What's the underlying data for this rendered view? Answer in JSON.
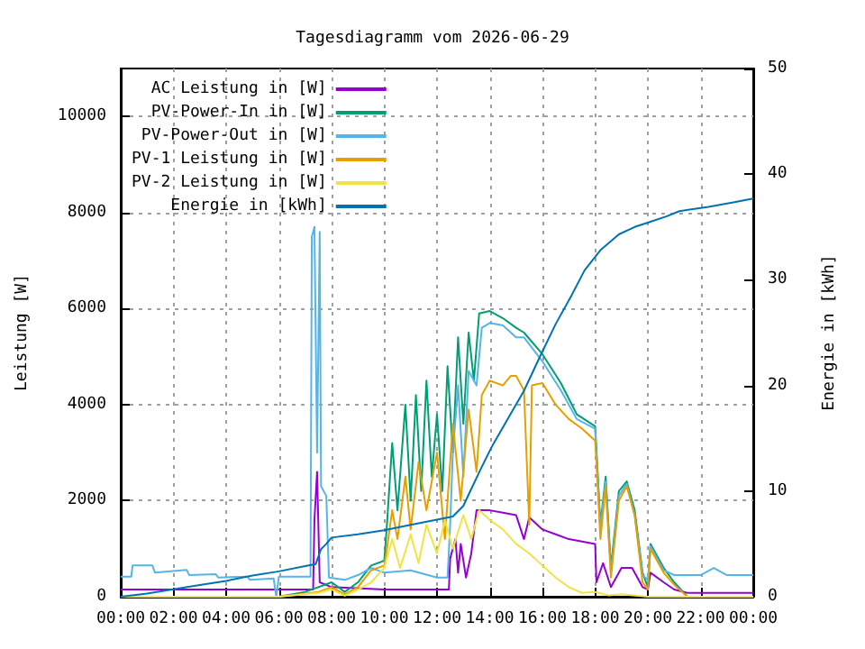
{
  "chart_data": {
    "type": "line",
    "title": "Tagesdiagramm vom 2026-06-29",
    "ylabel": "Leistung [W]",
    "y2label": "Energie in [kWh]",
    "xlim": [
      0,
      24
    ],
    "xticks": [
      {
        "value": 0,
        "label": "00:00"
      },
      {
        "value": 2,
        "label": "02:00"
      },
      {
        "value": 4,
        "label": "04:00"
      },
      {
        "value": 6,
        "label": "06:00"
      },
      {
        "value": 8,
        "label": "08:00"
      },
      {
        "value": 10,
        "label": "10:00"
      },
      {
        "value": 12,
        "label": "12:00"
      },
      {
        "value": 14,
        "label": "14:00"
      },
      {
        "value": 16,
        "label": "16:00"
      },
      {
        "value": 18,
        "label": "18:00"
      },
      {
        "value": 20,
        "label": "20:00"
      },
      {
        "value": 22,
        "label": "22:00"
      },
      {
        "value": 24,
        "label": "00:00"
      }
    ],
    "ylim": [
      0,
      11000
    ],
    "yticks": [
      0,
      2000,
      4000,
      6000,
      8000,
      10000
    ],
    "y2lim": [
      0,
      50
    ],
    "y2ticks": [
      0,
      10,
      20,
      30,
      40,
      50
    ],
    "grid": true,
    "legend": "top left",
    "line_style": "solid",
    "marker": "none",
    "series": [
      {
        "name": "AC Leistung in [W]",
        "color": "#9400d3",
        "x": [
          0,
          6,
          7.3,
          7.35,
          7.45,
          7.55,
          8,
          10,
          12,
          12.45,
          12.5,
          12.7,
          12.8,
          12.9,
          13.1,
          13.3,
          13.5,
          14,
          14.5,
          15,
          15.3,
          15.5,
          15.8,
          16,
          16.5,
          17,
          17.5,
          18,
          18.05,
          18.3,
          18.6,
          19,
          19.4,
          19.8,
          20,
          20.1,
          20.6,
          21,
          21.5,
          24
        ],
        "values": [
          150,
          150,
          150,
          1600,
          2600,
          300,
          200,
          150,
          150,
          150,
          800,
          1200,
          500,
          1100,
          400,
          900,
          1800,
          1800,
          1750,
          1700,
          1200,
          1650,
          1500,
          1400,
          1300,
          1200,
          1150,
          1100,
          300,
          700,
          200,
          600,
          600,
          200,
          150,
          500,
          300,
          150,
          80,
          80
        ]
      },
      {
        "name": "PV-Power-In in [W]",
        "color": "#009e73",
        "x": [
          0,
          6,
          7,
          8,
          8.5,
          9,
          9.5,
          10,
          10.1,
          10.3,
          10.5,
          10.8,
          11,
          11.2,
          11.4,
          11.6,
          11.8,
          12,
          12.2,
          12.4,
          12.6,
          12.8,
          13,
          13.2,
          13.4,
          13.6,
          14,
          14.5,
          15,
          15.3,
          16,
          16.7,
          17.3,
          18,
          18.05,
          18.2,
          18.4,
          18.6,
          18.9,
          19.2,
          19.5,
          19.8,
          20,
          20.1,
          20.6,
          21,
          21.5,
          24
        ],
        "values": [
          0,
          0,
          100,
          300,
          100,
          300,
          650,
          750,
          1500,
          3200,
          1800,
          4000,
          2000,
          4200,
          2200,
          4500,
          2500,
          3800,
          2200,
          4800,
          3000,
          5400,
          3600,
          5500,
          4500,
          5900,
          5950,
          5800,
          5600,
          5500,
          5050,
          4450,
          3800,
          3550,
          3050,
          1500,
          2500,
          600,
          2200,
          2400,
          1800,
          500,
          200,
          1100,
          600,
          300,
          0,
          0
        ]
      },
      {
        "name": "PV-Power-Out in [W]",
        "color": "#56b4e9",
        "x": [
          0,
          0.4,
          0.45,
          1.2,
          1.3,
          2.5,
          2.6,
          3.6,
          3.7,
          4.8,
          4.9,
          5.8,
          5.9,
          6,
          7.2,
          7.25,
          7.35,
          7.45,
          7.55,
          7.6,
          7.8,
          7.9,
          8.5,
          9,
          9.5,
          10,
          11,
          12,
          12.4,
          12.5,
          12.6,
          12.8,
          13,
          13.2,
          13.5,
          13.7,
          14,
          14.5,
          15,
          15.3,
          16,
          16.7,
          17.3,
          18,
          18.05,
          18.2,
          18.4,
          18.6,
          18.9,
          19.2,
          19.5,
          19.8,
          20,
          20.1,
          20.6,
          21,
          21.5,
          22,
          22.5,
          23,
          24
        ],
        "values": [
          420,
          420,
          650,
          650,
          500,
          560,
          450,
          470,
          400,
          420,
          350,
          380,
          0,
          420,
          420,
          7500,
          7700,
          3000,
          7600,
          2300,
          2100,
          400,
          350,
          450,
          600,
          500,
          550,
          400,
          400,
          1500,
          3000,
          4400,
          2500,
          4700,
          4400,
          5600,
          5700,
          5650,
          5400,
          5400,
          4900,
          4300,
          3700,
          3500,
          2950,
          1400,
          2400,
          500,
          2100,
          2350,
          1700,
          450,
          350,
          1050,
          550,
          450,
          450,
          450,
          600,
          450,
          450
        ]
      },
      {
        "name": "PV-1 Leistung in [W]",
        "color": "#e69f00",
        "x": [
          0,
          6,
          7.5,
          8,
          8.5,
          9,
          9.5,
          10,
          10.1,
          10.3,
          10.5,
          10.8,
          11,
          11.3,
          11.6,
          12,
          12.3,
          12.6,
          12.9,
          13.2,
          13.5,
          13.7,
          14,
          14.5,
          14.8,
          15,
          15.3,
          15.5,
          15.6,
          16,
          16.5,
          17,
          17.5,
          18,
          18.05,
          18.2,
          18.4,
          18.6,
          18.9,
          19.2,
          19.5,
          19.8,
          20,
          20.1,
          20.6,
          21,
          21.5,
          24
        ],
        "values": [
          0,
          0,
          100,
          200,
          50,
          200,
          550,
          650,
          1000,
          1800,
          1200,
          2500,
          1400,
          2800,
          1800,
          3000,
          1200,
          3600,
          2000,
          3900,
          2600,
          4200,
          4500,
          4400,
          4600,
          4600,
          4300,
          1500,
          4400,
          4450,
          4000,
          3700,
          3500,
          3250,
          2800,
          1200,
          2300,
          400,
          2000,
          2300,
          1700,
          300,
          150,
          1000,
          500,
          250,
          0,
          0
        ]
      },
      {
        "name": "PV-2 Leistung in [W]",
        "color": "#f0e442",
        "x": [
          0,
          6,
          7.5,
          8,
          8.5,
          9,
          9.5,
          10,
          10.3,
          10.6,
          11,
          11.3,
          11.6,
          12,
          12.3,
          12.6,
          13,
          13.3,
          13.6,
          14,
          14.5,
          15,
          15.5,
          16,
          16.5,
          17,
          17.5,
          18,
          18.5,
          19,
          20,
          24
        ],
        "values": [
          0,
          0,
          80,
          150,
          20,
          150,
          300,
          600,
          1200,
          600,
          1300,
          700,
          1500,
          900,
          1600,
          1000,
          1700,
          1200,
          1800,
          1600,
          1400,
          1100,
          900,
          650,
          400,
          200,
          80,
          100,
          30,
          50,
          0,
          0
        ]
      },
      {
        "name": "Energie in [kWh]",
        "color": "#0072b2",
        "axis": "y2",
        "x": [
          0,
          1,
          2,
          3,
          4,
          5,
          6,
          7,
          7.4,
          7.6,
          7.8,
          8,
          9,
          10,
          11,
          12,
          12.6,
          13,
          13.3,
          13.7,
          14.1,
          14.7,
          15.3,
          15.9,
          16.5,
          17.1,
          17.6,
          18.2,
          18.9,
          19.5,
          20.1,
          20.7,
          21.2,
          22.3,
          23.2,
          24
        ],
        "values": [
          0,
          0.3,
          0.7,
          1.1,
          1.5,
          2.0,
          2.4,
          2.9,
          3.1,
          4.5,
          5.0,
          5.6,
          5.9,
          6.3,
          6.8,
          7.3,
          7.6,
          8.6,
          10.2,
          12.3,
          14.3,
          16.9,
          19.5,
          22.7,
          25.8,
          28.5,
          30.9,
          32.8,
          34.3,
          35.0,
          35.5,
          36.0,
          36.5,
          36.9,
          37.3,
          37.7
        ]
      }
    ]
  }
}
